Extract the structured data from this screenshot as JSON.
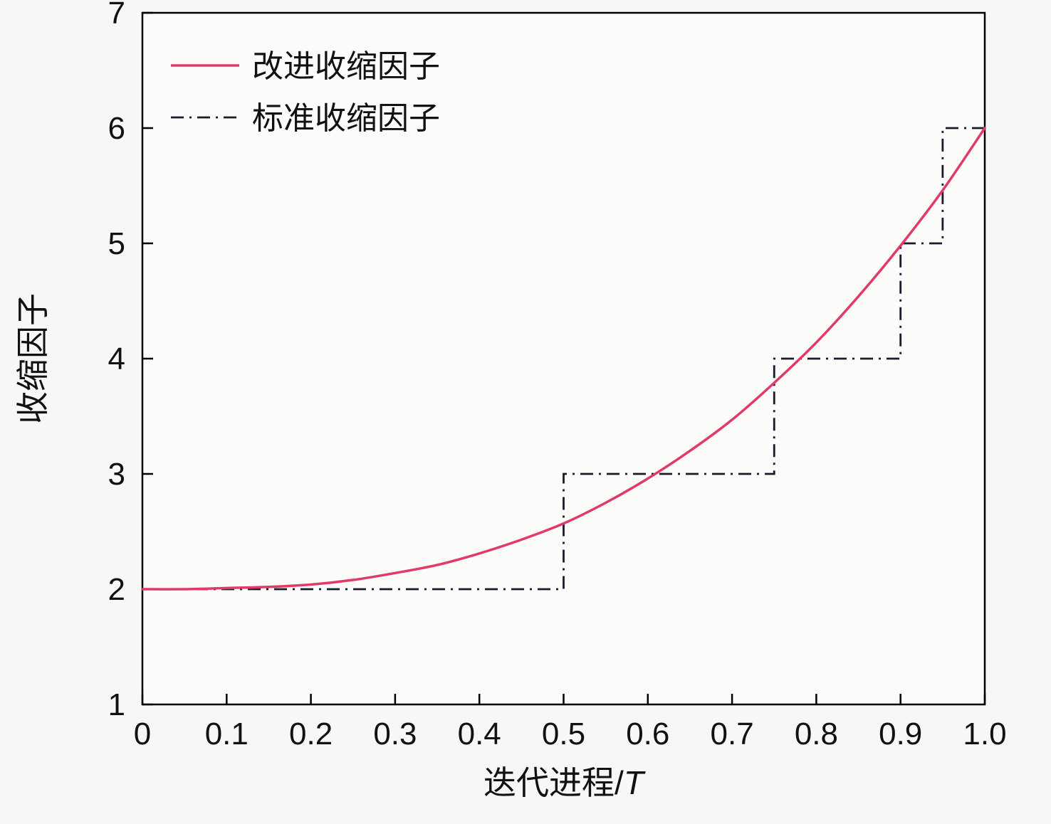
{
  "chart_data": {
    "type": "line",
    "title": "",
    "xlabel": "迭代进程/T",
    "xlabel_prefix": "迭代进程/",
    "xlabel_var": "T",
    "ylabel": "收缩因子",
    "xlim": [
      0,
      1
    ],
    "ylim": [
      1,
      7
    ],
    "grid": false,
    "legend_position": "top-left",
    "x_ticks": {
      "values": [
        0,
        0.1,
        0.2,
        0.3,
        0.4,
        0.5,
        0.6,
        0.7,
        0.8,
        0.9,
        1.0
      ],
      "labels": [
        "0",
        "0.1",
        "0.2",
        "0.3",
        "0.4",
        "0.5",
        "0.6",
        "0.7",
        "0.8",
        "0.9",
        "1.0"
      ]
    },
    "y_ticks": {
      "values": [
        1,
        2,
        3,
        4,
        5,
        6,
        7
      ],
      "labels": [
        "1",
        "2",
        "3",
        "4",
        "5",
        "6",
        "7"
      ]
    },
    "series": [
      {
        "name": "改进收缩因子",
        "key": "improved",
        "color": "#e23a66",
        "line_style": "solid",
        "line_width": 3.5,
        "smooth": true,
        "x": [
          0,
          0.05,
          0.1,
          0.15,
          0.2,
          0.25,
          0.3,
          0.35,
          0.4,
          0.45,
          0.5,
          0.55,
          0.6,
          0.65,
          0.7,
          0.75,
          0.8,
          0.85,
          0.9,
          0.95,
          1.0
        ],
        "y": [
          2.0,
          2.0,
          2.01,
          2.02,
          2.04,
          2.08,
          2.14,
          2.21,
          2.31,
          2.43,
          2.57,
          2.75,
          2.96,
          3.2,
          3.47,
          3.79,
          4.14,
          4.54,
          4.98,
          5.46,
          6.0
        ]
      },
      {
        "name": "标准收缩因子",
        "key": "standard",
        "color": "#1a1a2e",
        "line_style": "dash-dot",
        "line_width": 2.8,
        "smooth": false,
        "x": [
          0,
          0.5,
          0.5,
          0.75,
          0.75,
          0.9,
          0.9,
          0.95,
          0.95,
          1.0
        ],
        "y": [
          2,
          2,
          3,
          3,
          4,
          4,
          5,
          5,
          6,
          6
        ]
      }
    ],
    "legend": [
      {
        "label": "改进收缩因子",
        "series": "improved"
      },
      {
        "label": "标准收缩因子",
        "series": "standard"
      }
    ]
  },
  "colors": {
    "background": "#f7f7f6",
    "plot_background": "#fbfbfa",
    "axis": "#000000",
    "improved_line": "#e23a66",
    "standard_line": "#1a1a2e"
  }
}
